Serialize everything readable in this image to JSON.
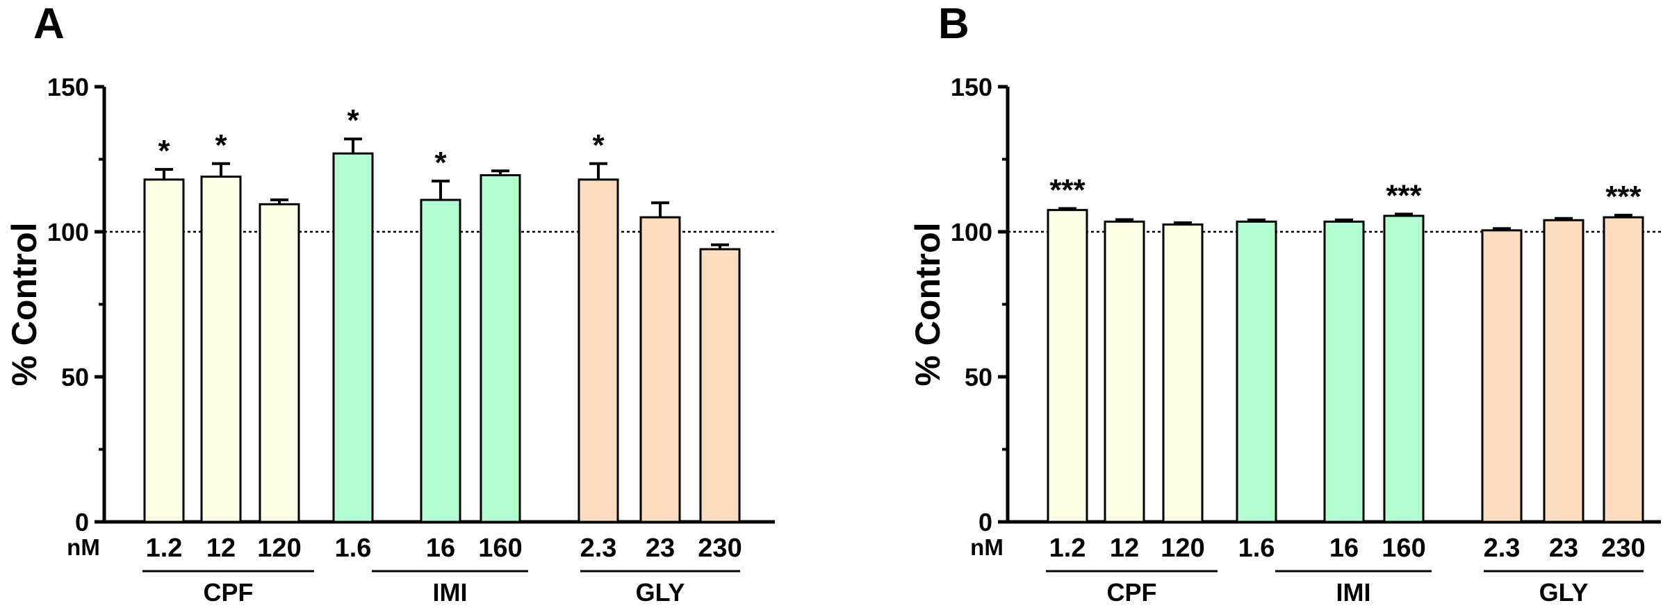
{
  "chart_data": [
    {
      "panel": "A",
      "type": "bar",
      "ylabel": "% Control",
      "ylim": [
        0,
        150
      ],
      "yticks": [
        "0",
        "50",
        "100",
        "150"
      ],
      "reference_line": 100,
      "unit": "nM",
      "categories": [
        "1.2",
        "12",
        "120",
        "1.6",
        "16",
        "160",
        "2.3",
        "23",
        "230"
      ],
      "groups": [
        {
          "name": "CPF",
          "color": "#FFFFE5",
          "indices": [
            0,
            1,
            2
          ]
        },
        {
          "name": "IMI",
          "color": "#B3FFD1",
          "indices": [
            3,
            4,
            5
          ]
        },
        {
          "name": "GLY",
          "color": "#FCDDC0",
          "indices": [
            6,
            7,
            8
          ]
        }
      ],
      "values": [
        118,
        119,
        109.5,
        127,
        111,
        119.5,
        118,
        105,
        94
      ],
      "errors": [
        3.5,
        4.5,
        1.5,
        5,
        6.5,
        1.5,
        5.5,
        5,
        1.5
      ],
      "significance": [
        "*",
        "*",
        "",
        "*",
        "*",
        "",
        "*",
        "",
        ""
      ]
    },
    {
      "panel": "B",
      "type": "bar",
      "ylabel": "% Control",
      "ylim": [
        0,
        150
      ],
      "yticks": [
        "0",
        "50",
        "100",
        "150"
      ],
      "reference_line": 100,
      "unit": "nM",
      "categories": [
        "1.2",
        "12",
        "120",
        "1.6",
        "16",
        "160",
        "2.3",
        "23",
        "230"
      ],
      "groups": [
        {
          "name": "CPF",
          "color": "#FFFFE5",
          "indices": [
            0,
            1,
            2
          ]
        },
        {
          "name": "IMI",
          "color": "#B3FFD1",
          "indices": [
            3,
            4,
            5
          ]
        },
        {
          "name": "GLY",
          "color": "#FCDDC0",
          "indices": [
            6,
            7,
            8
          ]
        }
      ],
      "values": [
        107.5,
        103.5,
        102.5,
        103.5,
        103.5,
        105.5,
        100.5,
        104,
        105
      ],
      "errors": [
        0.5,
        0.7,
        0.6,
        0.6,
        0.6,
        0.6,
        0.6,
        0.6,
        0.7
      ],
      "significance": [
        "***",
        "",
        "",
        "",
        "",
        "***",
        "",
        "",
        "***"
      ]
    }
  ]
}
